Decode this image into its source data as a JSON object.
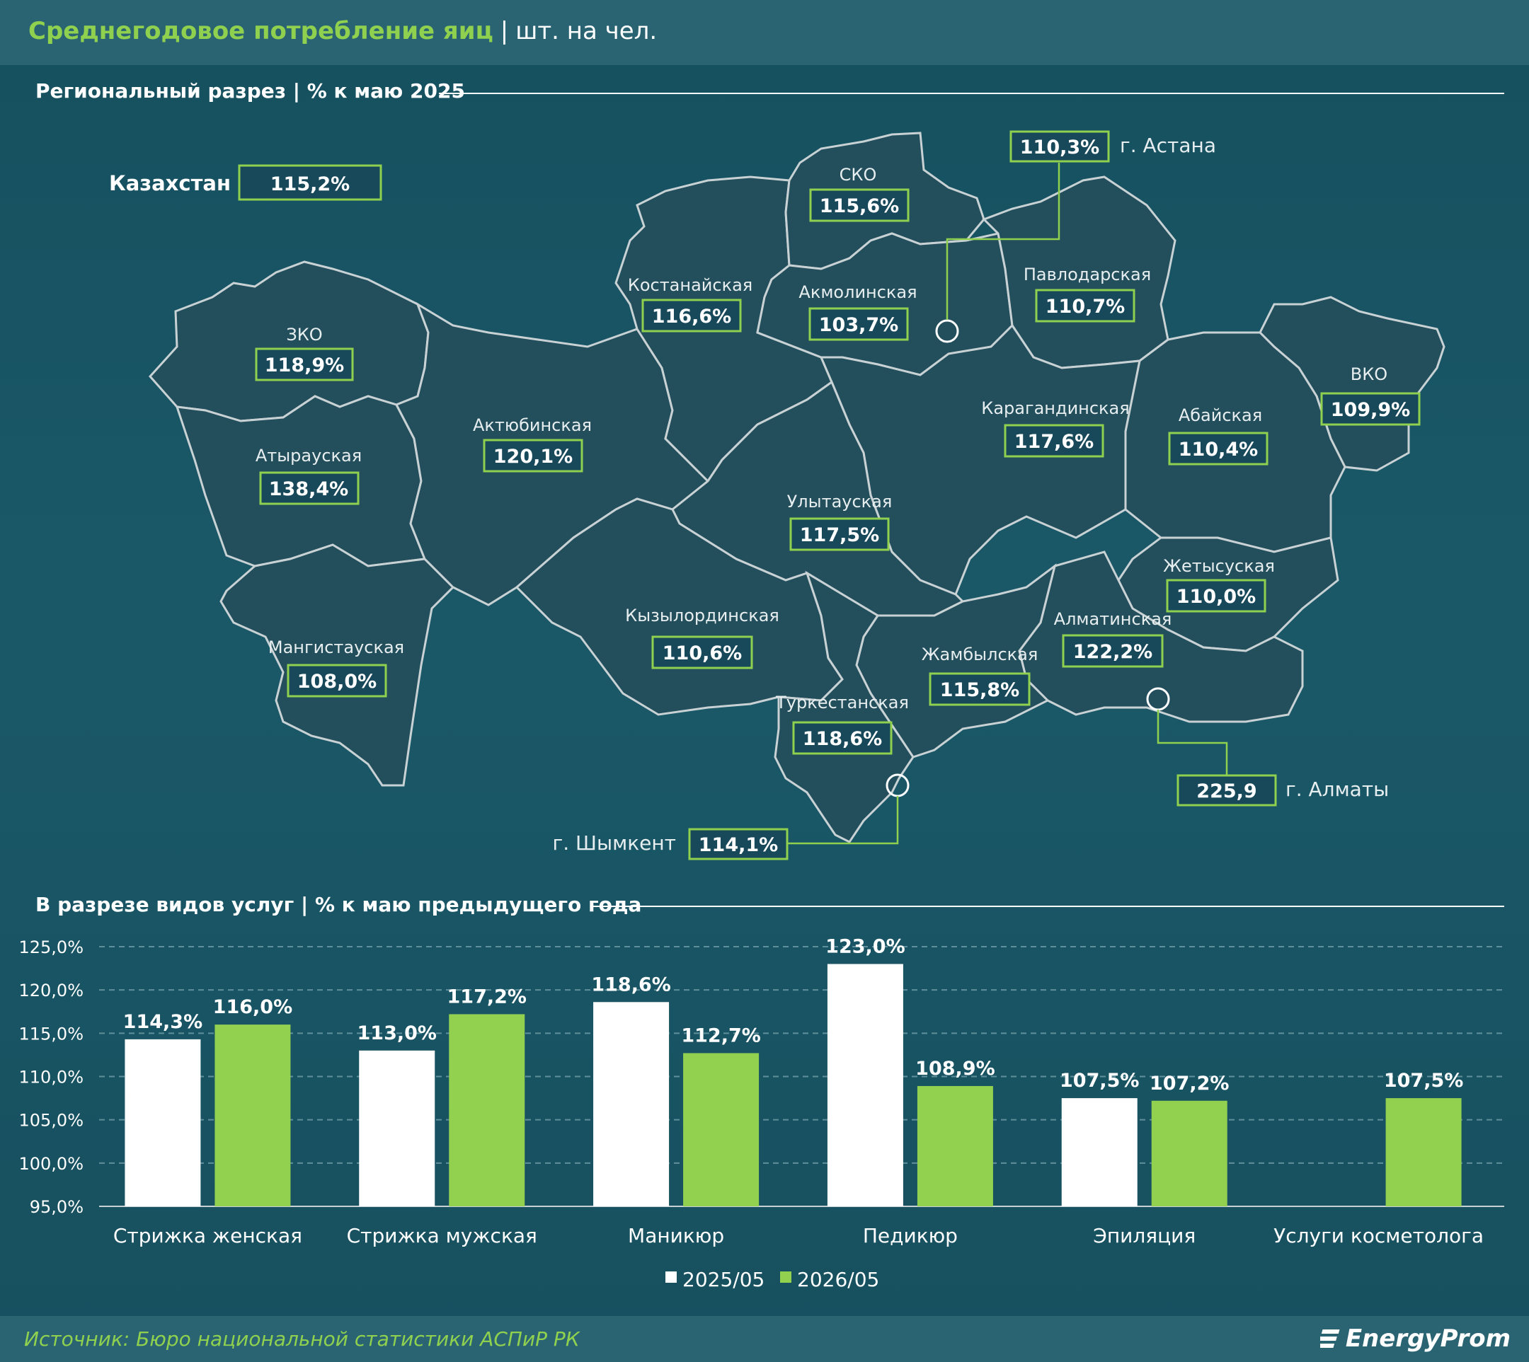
{
  "header": {
    "title": "Среднегодовое потребление яиц",
    "separator": "|",
    "unit": "шт. на чел."
  },
  "map_section": {
    "title": "Региональный разрез | % к маю 2025",
    "country_label": "Казахстан",
    "country_value": "115,2%",
    "regions": [
      {
        "id": "zko",
        "name": "ЗКО",
        "value": "118,9%"
      },
      {
        "id": "atyrau",
        "name": "Атырауская",
        "value": "138,4%"
      },
      {
        "id": "mangystau",
        "name": "Мангистауская",
        "value": "108,0%"
      },
      {
        "id": "aktobe",
        "name": "Актюбинская",
        "value": "120,1%"
      },
      {
        "id": "kostanay",
        "name": "Костанайская",
        "value": "116,6%"
      },
      {
        "id": "sko",
        "name": "СКО",
        "value": "115,6%"
      },
      {
        "id": "akmola",
        "name": "Акмолинская",
        "value": "103,7%"
      },
      {
        "id": "pavlodar",
        "name": "Павлодарская",
        "value": "110,7%"
      },
      {
        "id": "vko",
        "name": "ВКО",
        "value": "109,9%"
      },
      {
        "id": "karaganda",
        "name": "Карагандинская",
        "value": "117,6%"
      },
      {
        "id": "abai",
        "name": "Абайская",
        "value": "110,4%"
      },
      {
        "id": "ulytau",
        "name": "Улытауская",
        "value": "117,5%"
      },
      {
        "id": "zhetysu",
        "name": "Жетысуская",
        "value": "110,0%"
      },
      {
        "id": "kyzylorda",
        "name": "Кызылординская",
        "value": "110,6%"
      },
      {
        "id": "almaty_reg",
        "name": "Алматинская",
        "value": "122,2%"
      },
      {
        "id": "zhambyl",
        "name": "Жамбылская",
        "value": "115,8%"
      },
      {
        "id": "turkestan",
        "name": "Туркестанская",
        "value": "118,6%"
      }
    ],
    "cities": [
      {
        "id": "astana",
        "name": "г. Астана",
        "value": "110,3%"
      },
      {
        "id": "almaty",
        "name": "г. Алматы",
        "value": "225,9"
      },
      {
        "id": "shymkent",
        "name": "г. Шымкент",
        "value": "114,1%"
      }
    ]
  },
  "chart_section": {
    "title": "В разрезе видов услуг | % к маю предыдущего года"
  },
  "chart_data": {
    "type": "bar",
    "categories": [
      "Стрижка женская",
      "Стрижка мужская",
      "Маникюр",
      "Педикюр",
      "Эпиляция",
      "Услуги косметолога"
    ],
    "series": [
      {
        "name": "2025/05",
        "color": "#ffffff",
        "values": [
          114.3,
          113.0,
          118.6,
          123.0,
          107.5,
          null
        ],
        "labels": [
          "114,3%",
          "113,0%",
          "118,6%",
          "123,0%",
          "107,5%",
          ""
        ]
      },
      {
        "name": "2026/05",
        "color": "#92d050",
        "values": [
          116.0,
          117.2,
          112.7,
          108.9,
          107.2,
          107.5
        ],
        "labels": [
          "116,0%",
          "117,2%",
          "112,7%",
          "108,9%",
          "107,2%",
          "107,5%"
        ]
      }
    ],
    "ylim": [
      95,
      125
    ],
    "yticks": [
      95,
      100,
      105,
      110,
      115,
      120,
      125
    ],
    "ytick_labels": [
      "95,0%",
      "100,0%",
      "105,0%",
      "110,0%",
      "115,0%",
      "120,0%",
      "125,0%"
    ],
    "grid": true,
    "legend": "bottom-center"
  },
  "footer": {
    "source": "Источник: Бюро национальной статистики АСПиР РК",
    "logo": "EnergyProm"
  }
}
